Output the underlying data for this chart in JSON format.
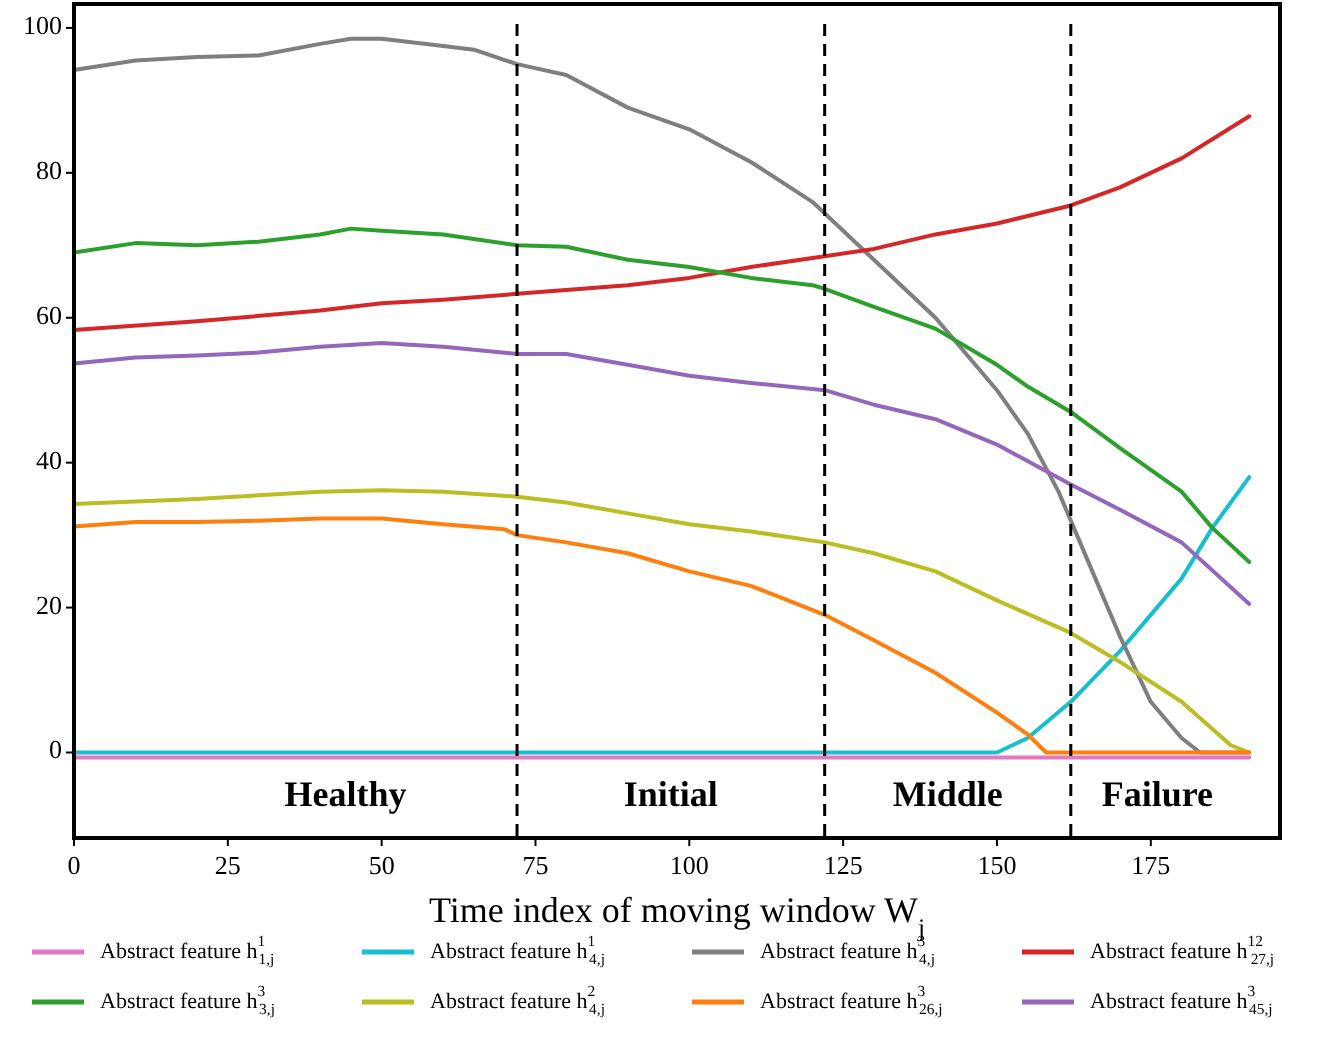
{
  "chart_data": {
    "type": "line",
    "xlabel": "Time index of moving window W$_{j}$",
    "xlim": [
      0,
      196
    ],
    "ylim": [
      -11.8,
      103.3
    ],
    "xticks": [
      0,
      25,
      50,
      75,
      100,
      125,
      150,
      175
    ],
    "yticks": [
      0,
      20,
      40,
      60,
      80,
      100
    ],
    "grid": false,
    "legend": "bottom",
    "marker": "none",
    "line_style": "solid",
    "series": [
      {
        "name": "Abstract feature h$^{1}$$_{1,j}$",
        "color": "#e377c2",
        "x": [
          0,
          191
        ],
        "values": [
          -0.7,
          -0.7
        ]
      },
      {
        "name": "Abstract feature h$^{1}$$_{4,j}$",
        "color": "#17becf",
        "x": [
          0,
          150,
          155,
          162,
          170,
          180,
          185,
          191
        ],
        "values": [
          0,
          0,
          2,
          7,
          14,
          24,
          31,
          38
        ]
      },
      {
        "name": "Abstract feature h$^{3}$$_{4,j}$",
        "color": "#7f7f7f",
        "x": [
          0,
          10,
          20,
          30,
          40,
          45,
          50,
          60,
          65,
          72,
          80,
          90,
          100,
          110,
          120,
          125,
          130,
          140,
          150,
          155,
          160,
          165,
          170,
          175,
          180,
          183,
          191
        ],
        "values": [
          94.2,
          95.5,
          96,
          96.2,
          97.8,
          98.5,
          98.5,
          97.5,
          97,
          95,
          93.5,
          89,
          86,
          81.5,
          76,
          72,
          68,
          60,
          50,
          44,
          36,
          26,
          16,
          7,
          2,
          0,
          0
        ]
      },
      {
        "name": "Abstract feature h$^{12}$$_{27,j}$",
        "color": "#d62728",
        "x": [
          0,
          20,
          40,
          50,
          60,
          72,
          90,
          100,
          110,
          122,
          130,
          140,
          150,
          162,
          170,
          180,
          191
        ],
        "values": [
          58.3,
          59.5,
          61,
          62,
          62.5,
          63.3,
          64.5,
          65.5,
          67,
          68.5,
          69.5,
          71.5,
          73,
          75.5,
          78,
          82,
          87.8
        ]
      },
      {
        "name": "Abstract feature h$^{3}$$_{3,j}$",
        "color": "#2ca02c",
        "x": [
          0,
          10,
          20,
          30,
          40,
          45,
          50,
          60,
          72,
          80,
          90,
          100,
          110,
          120,
          122,
          130,
          140,
          150,
          155,
          162,
          170,
          180,
          185,
          191
        ],
        "values": [
          69,
          70.3,
          70,
          70.5,
          71.5,
          72.3,
          72,
          71.5,
          70,
          69.8,
          68,
          67,
          65.5,
          64.5,
          64,
          61.5,
          58.5,
          53.5,
          50.5,
          47,
          42,
          36,
          31,
          26.3
        ]
      },
      {
        "name": "Abstract feature h$^{2}$$_{4,j}$",
        "color": "#bcbd22",
        "x": [
          0,
          20,
          40,
          50,
          60,
          72,
          80,
          90,
          100,
          110,
          122,
          130,
          140,
          150,
          162,
          170,
          180,
          188,
          191
        ],
        "values": [
          34.3,
          35,
          36,
          36.2,
          36,
          35.3,
          34.5,
          33,
          31.5,
          30.5,
          29,
          27.5,
          25,
          21,
          16.5,
          12.5,
          7,
          1,
          0
        ]
      },
      {
        "name": "Abstract feature h$^{3}$$_{26,j}$",
        "color": "#ff7f0e",
        "x": [
          0,
          10,
          20,
          30,
          40,
          50,
          60,
          70,
          72,
          80,
          90,
          100,
          110,
          122,
          130,
          140,
          150,
          155,
          158,
          191
        ],
        "values": [
          31.2,
          31.8,
          31.8,
          32,
          32.3,
          32.3,
          31.5,
          30.8,
          30,
          29,
          27.5,
          25,
          23,
          19,
          15.5,
          11,
          5.5,
          2.5,
          0,
          0
        ]
      },
      {
        "name": "Abstract feature h$^{3}$$_{45,j}$",
        "color": "#9467bd",
        "x": [
          0,
          10,
          20,
          30,
          40,
          50,
          60,
          72,
          80,
          90,
          100,
          110,
          122,
          130,
          140,
          150,
          162,
          170,
          180,
          191
        ],
        "values": [
          53.7,
          54.5,
          54.8,
          55.2,
          56,
          56.5,
          56,
          55,
          55,
          53.5,
          52,
          51,
          50,
          48,
          46,
          42.5,
          37,
          33.5,
          29,
          20.5
        ]
      }
    ],
    "ref_lines": [
      {
        "axis": "x",
        "value": 72,
        "color": "#000000",
        "line_style": "dashed"
      },
      {
        "axis": "x",
        "value": 122,
        "color": "#000000",
        "line_style": "dashed"
      },
      {
        "axis": "x",
        "value": 162,
        "color": "#000000",
        "line_style": "dashed"
      }
    ],
    "annotations": [
      "Healthy",
      "Initial",
      "Middle",
      "Failure"
    ]
  }
}
